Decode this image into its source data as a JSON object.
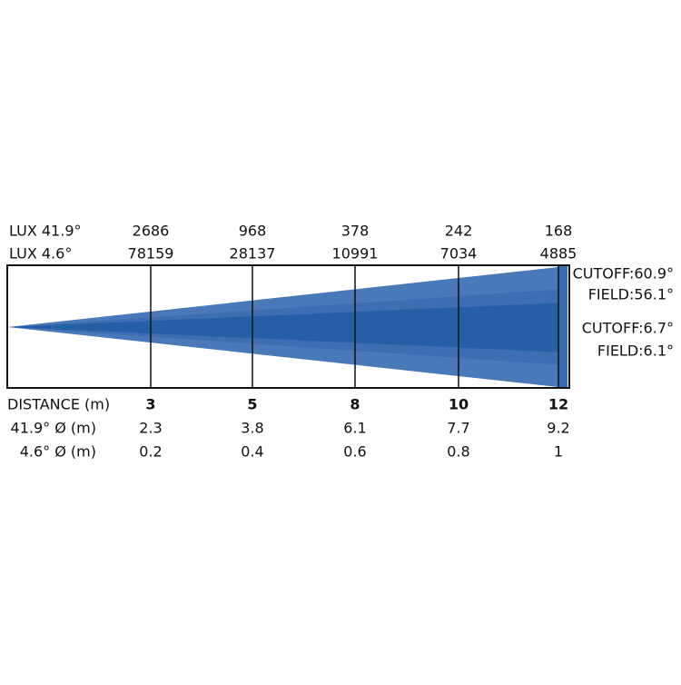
{
  "lux_wide": {
    "label": "LUX 41.9°",
    "values": [
      2686,
      968,
      378,
      242,
      168
    ]
  },
  "lux_narrow": {
    "label": "LUX 4.6°",
    "values": [
      78159,
      28137,
      10991,
      7034,
      4885
    ]
  },
  "distance": {
    "label": "DISTANCE (m)",
    "values": [
      3,
      5,
      8,
      10,
      12
    ]
  },
  "diameter_wide": {
    "label": "41.9° Ø (m)",
    "values": [
      2.3,
      3.8,
      6.1,
      7.7,
      9.2
    ]
  },
  "diameter_narrow": {
    "label": "4.6° Ø (m)",
    "values": [
      0.2,
      0.4,
      0.6,
      0.8,
      1
    ]
  },
  "angles": [
    "CUTOFF:60.9°",
    "FIELD:56.1°",
    "CUTOFF:6.7°",
    "FIELD:6.1°"
  ]
}
